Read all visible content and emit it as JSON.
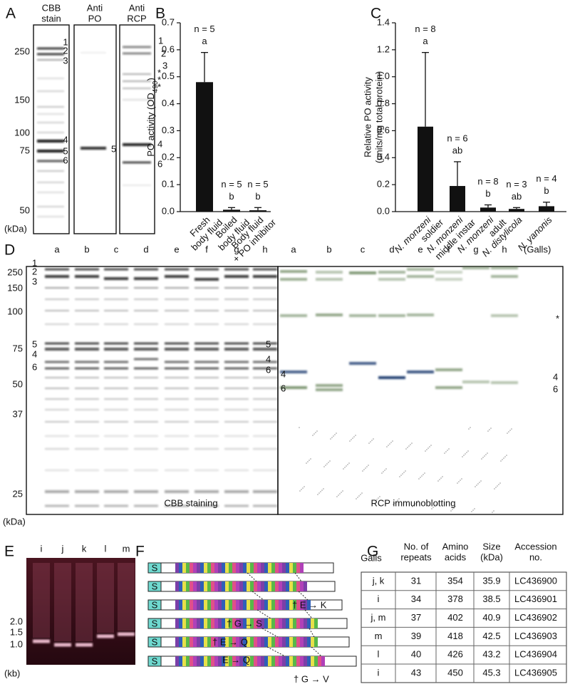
{
  "panels": {
    "A": {
      "letter": "A",
      "lanes": [
        [
          "CBB",
          "stain"
        ],
        [
          "Anti",
          "PO"
        ],
        [
          "Anti",
          "RCP"
        ]
      ],
      "markers": [
        "250",
        "150",
        "100",
        "75",
        "50"
      ],
      "unit": "(kDa)",
      "cbb_bands": [
        "1",
        "2",
        "3",
        "4",
        "5",
        "6"
      ],
      "po_bands": [
        "5"
      ],
      "rcp_bands": [
        "1",
        "2",
        "3",
        "*",
        "*",
        "*",
        "4",
        "6"
      ]
    },
    "B": {
      "letter": "B"
    },
    "C": {
      "letter": "C"
    },
    "D": {
      "letter": "D",
      "lanes": [
        "a",
        "b",
        "c",
        "d",
        "e",
        "f",
        "g",
        "h"
      ],
      "lanes_blot": [
        "a",
        "b",
        "c",
        "d",
        "e",
        "f",
        "g",
        "h"
      ],
      "galls": "(Galls)",
      "markers": [
        "250",
        "150",
        "100",
        "75",
        "50",
        "37",
        "25"
      ],
      "unit": "(kDa)",
      "left_bands": [
        "1",
        "2",
        "3",
        "5",
        "4",
        "6"
      ],
      "mid_bands": [
        "5",
        "4",
        "6"
      ],
      "blot_left_bands": [
        "4",
        "6"
      ],
      "blot_right_bands": [
        "*",
        "4",
        "6"
      ],
      "cbb_caption": "CBB staining",
      "blot_caption": "RCP immunoblotting"
    },
    "E": {
      "letter": "E",
      "lanes": [
        "i",
        "j",
        "k",
        "l",
        "m"
      ],
      "markers": [
        "2.0",
        "1.5",
        "1.0"
      ],
      "unit": "(kb)"
    },
    "F": {
      "letter": "F",
      "signal": "S",
      "mutations": [
        "† E → K",
        "† G → S",
        "† E → Q",
        "E → Q",
        "† G → V"
      ]
    },
    "G": {
      "letter": "G",
      "header": [
        [
          "Galls"
        ],
        [
          "No. of",
          "repeats"
        ],
        [
          "Amino",
          "acids"
        ],
        [
          "Size",
          "(kDa)"
        ],
        [
          "Accession",
          "no."
        ]
      ],
      "rows": [
        [
          "j, k",
          "31",
          "354",
          "35.9",
          "LC436900"
        ],
        [
          "i",
          "34",
          "378",
          "38.5",
          "LC436901"
        ],
        [
          "j, m",
          "37",
          "402",
          "40.9",
          "LC436902"
        ],
        [
          "m",
          "39",
          "418",
          "42.5",
          "LC436903"
        ],
        [
          "l",
          "40",
          "426",
          "43.2",
          "LC436904"
        ],
        [
          "i",
          "43",
          "450",
          "45.3",
          "LC436905"
        ]
      ]
    }
  },
  "chart_data": [
    {
      "type": "bar",
      "ylabel_parts": [
        "PO activity (OD",
        "490",
        ")"
      ],
      "categories": [
        [
          "Fresh",
          "body fluid"
        ],
        [
          "Boiled",
          "body fluid"
        ],
        [
          "Body fluid",
          "+ PO inhibitor"
        ]
      ],
      "values": [
        0.48,
        0.007,
        0.005
      ],
      "errors": [
        0.11,
        0.008,
        0.01
      ],
      "n_labels": [
        "n = 5",
        "n = 5",
        "n = 5"
      ],
      "group_letters": [
        "a",
        "b",
        "b"
      ],
      "color": "#111111",
      "ylim": [
        0,
        0.7
      ],
      "yticks": [
        {
          "value": 0,
          "label": "0.0"
        },
        0.1,
        0.2,
        0.3,
        0.4,
        0.5,
        0.6,
        0.7
      ]
    },
    {
      "type": "bar",
      "ylabel_lines": [
        "Relative PO activity",
        "(units/mg total protein)"
      ],
      "categories": [
        [
          "N. monzeni",
          "soldier"
        ],
        [
          "N. monzeni",
          "middle instar"
        ],
        [
          "N. monzeni",
          "adult"
        ],
        [
          "N. distylicola"
        ],
        [
          "N. yanonis"
        ]
      ],
      "values": [
        0.63,
        0.19,
        0.03,
        0.02,
        0.04
      ],
      "errors": [
        0.55,
        0.18,
        0.02,
        0.01,
        0.03
      ],
      "n_labels": [
        "n = 8",
        "n = 6",
        "n = 8",
        "n = 3",
        "n = 4"
      ],
      "group_letters": [
        "a",
        "ab",
        "b",
        "ab",
        "b"
      ],
      "color": "#111111",
      "ylim": [
        0,
        1.4
      ],
      "yticks": [
        {
          "value": 0,
          "label": "0.0"
        },
        0.2,
        0.4,
        0.6,
        0.8,
        {
          "value": 1,
          "label": "1.0"
        },
        1.2,
        1.4
      ]
    }
  ]
}
